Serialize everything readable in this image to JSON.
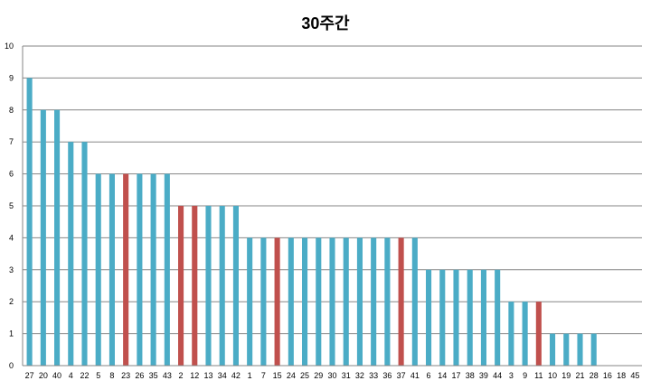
{
  "chart_data": {
    "type": "bar",
    "title": "30주간",
    "xlabel": "",
    "ylabel": "",
    "ylim": [
      0,
      10
    ],
    "y_ticks": [
      0,
      1,
      2,
      3,
      4,
      5,
      6,
      7,
      8,
      9,
      10
    ],
    "grid": true,
    "legend": "none",
    "categories": [
      "27",
      "20",
      "40",
      "4",
      "22",
      "5",
      "8",
      "23",
      "26",
      "35",
      "43",
      "2",
      "12",
      "13",
      "34",
      "42",
      "1",
      "7",
      "15",
      "24",
      "25",
      "29",
      "30",
      "31",
      "32",
      "33",
      "36",
      "37",
      "41",
      "6",
      "14",
      "17",
      "38",
      "39",
      "44",
      "3",
      "9",
      "11",
      "10",
      "19",
      "21",
      "28",
      "16",
      "18",
      "45"
    ],
    "values": [
      9,
      8,
      8,
      7,
      7,
      6,
      6,
      6,
      6,
      6,
      6,
      5,
      5,
      5,
      5,
      5,
      4,
      4,
      4,
      4,
      4,
      4,
      4,
      4,
      4,
      4,
      4,
      4,
      4,
      3,
      3,
      3,
      3,
      3,
      3,
      2,
      2,
      2,
      1,
      1,
      1,
      1,
      0,
      0,
      0
    ],
    "highlighted_categories": [
      "23",
      "2",
      "12",
      "15",
      "37",
      "11"
    ],
    "colors": {
      "bar": "#4BACC6",
      "highlight": "#C0504D",
      "grid": "#868686",
      "axis": "#868686"
    }
  }
}
